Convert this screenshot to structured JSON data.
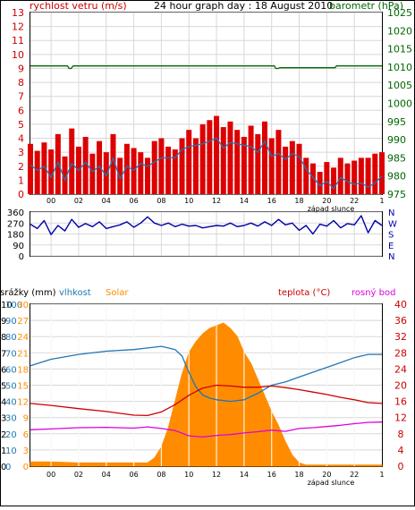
{
  "colors": {
    "wind": "#dd0000",
    "wind_avg": "#1f77b4",
    "pressure": "#006600",
    "direction": "#0000aa",
    "rain": "#1f77b4",
    "humidity": "#1f77b4",
    "solar": "#ff8c00",
    "temperature": "#cc0000",
    "dewpoint": "#dd00dd",
    "frame": "#000000"
  },
  "chart_data": [
    {
      "type": "line",
      "title": "24 hour graph day : 18 August 2010",
      "ylabel_left": "rychlost vetru (m/s)",
      "ylabel_right": "barometr (hPa)",
      "ylim_left": [
        0,
        13
      ],
      "ylim_right": [
        975,
        1025
      ],
      "y_ticks_left": [
        "0",
        "1",
        "2",
        "3",
        "4",
        "5",
        "6",
        "7",
        "8",
        "9",
        "10",
        "11",
        "12",
        "13"
      ],
      "y_ticks_right": [
        "975",
        "980",
        "985",
        "990",
        "995",
        "1000",
        "1005",
        "1010",
        "1015",
        "1020",
        "1025"
      ],
      "x_ticks": [
        "00",
        "02",
        "04",
        "06",
        "08",
        "10",
        "12",
        "14",
        "16",
        "18",
        "20",
        "22"
      ],
      "x_range_hours": [
        -1.5,
        24
      ],
      "sunset_label": "západ slunce",
      "sunset_hour": 20.3,
      "series": [
        {
          "name": "wind gust",
          "axis": "left",
          "hours": [
            -1.5,
            -1,
            -0.5,
            0,
            0.5,
            1,
            1.5,
            2,
            2.5,
            3,
            3.5,
            4,
            4.5,
            5,
            5.5,
            6,
            6.5,
            7,
            7.5,
            8,
            8.5,
            9,
            9.5,
            10,
            10.5,
            11,
            11.5,
            12,
            12.5,
            13,
            13.5,
            14,
            14.5,
            15,
            15.5,
            16,
            16.5,
            17,
            17.5,
            18,
            18.5,
            19,
            19.5,
            20,
            20.5,
            21,
            21.5,
            22,
            22.5,
            23,
            23.5,
            24
          ],
          "values": [
            3.6,
            3.1,
            3.7,
            3.2,
            4.3,
            2.7,
            4.7,
            3.4,
            4.1,
            2.9,
            3.8,
            3.0,
            4.3,
            2.6,
            3.6,
            3.3,
            3.0,
            2.6,
            3.8,
            4.0,
            3.4,
            3.2,
            4.0,
            4.6,
            4.0,
            5.0,
            5.3,
            5.6,
            4.8,
            5.2,
            4.6,
            4.1,
            4.9,
            4.3,
            5.2,
            4.0,
            4.6,
            3.4,
            3.8,
            3.6,
            2.6,
            2.2,
            1.6,
            2.3,
            1.9,
            2.6,
            2.2,
            2.4,
            2.6,
            2.6,
            2.9,
            3.0
          ]
        },
        {
          "name": "wind average",
          "axis": "left",
          "hours": [
            -1.5,
            -1,
            -0.5,
            0,
            0.5,
            1,
            1.5,
            2,
            2.5,
            3,
            3.5,
            4,
            4.5,
            5,
            5.5,
            6,
            6.5,
            7,
            7.5,
            8,
            8.5,
            9,
            9.5,
            10,
            10.5,
            11,
            11.5,
            12,
            12.5,
            13,
            13.5,
            14,
            14.5,
            15,
            15.5,
            16,
            16.5,
            17,
            17.5,
            18,
            18.5,
            19,
            19.5,
            20,
            20.5,
            21,
            21.5,
            22,
            22.5,
            23,
            23.5,
            24
          ],
          "values": [
            2.1,
            1.7,
            2.0,
            1.2,
            2.3,
            1.0,
            2.2,
            1.7,
            2.3,
            1.6,
            2.0,
            1.3,
            2.6,
            1.1,
            2.0,
            1.7,
            2.2,
            2.0,
            2.3,
            2.6,
            2.6,
            2.6,
            3.2,
            3.4,
            3.5,
            3.6,
            3.8,
            4.0,
            3.3,
            3.7,
            3.6,
            3.5,
            3.4,
            3.0,
            3.8,
            2.7,
            2.9,
            2.5,
            2.9,
            2.7,
            1.8,
            1.2,
            0.6,
            0.9,
            0.4,
            1.2,
            0.9,
            0.7,
            0.8,
            0.5,
            0.8,
            1.3
          ]
        },
        {
          "name": "pressure",
          "axis": "right",
          "hours": [
            -1.5,
            1.2,
            1.3,
            1.45,
            1.6,
            16.2,
            16.3,
            16.45,
            16.6,
            20.6,
            20.7,
            24
          ],
          "values": [
            1010.3,
            1010.3,
            1009.6,
            1009.6,
            1010.3,
            1010.3,
            1009.6,
            1009.6,
            1009.8,
            1009.8,
            1010.3,
            1010.3
          ]
        }
      ]
    },
    {
      "type": "line",
      "ylabel_right": [
        "N",
        "W",
        "S",
        "E",
        "N"
      ],
      "ylim": [
        0,
        360
      ],
      "y_ticks_left": [
        "0",
        "90",
        "180",
        "270",
        "360"
      ],
      "series": [
        {
          "name": "wind direction",
          "hours": [
            -1.5,
            -1,
            -0.5,
            0,
            0.5,
            1,
            1.5,
            2,
            2.5,
            3,
            3.5,
            4,
            4.5,
            5,
            5.5,
            6,
            6.5,
            7,
            7.5,
            8,
            8.5,
            9,
            9.5,
            10,
            10.5,
            11,
            11.5,
            12,
            12.5,
            13,
            13.5,
            14,
            14.5,
            15,
            15.5,
            16,
            16.5,
            17,
            17.5,
            18,
            18.5,
            19,
            19.5,
            20,
            20.5,
            21,
            21.5,
            22,
            22.5,
            23,
            23.5,
            24
          ],
          "values": [
            260,
            225,
            290,
            175,
            250,
            205,
            300,
            235,
            265,
            240,
            280,
            225,
            240,
            255,
            280,
            235,
            270,
            320,
            270,
            250,
            270,
            240,
            260,
            245,
            250,
            230,
            240,
            250,
            245,
            270,
            240,
            250,
            270,
            245,
            280,
            250,
            300,
            255,
            270,
            210,
            250,
            180,
            260,
            245,
            290,
            230,
            265,
            255,
            330,
            190,
            290,
            250
          ]
        }
      ]
    },
    {
      "type": "line",
      "ylabel_left_labels": [
        "srážky (mm)",
        "vlhkost",
        "Solar"
      ],
      "ylabel_right_labels": [
        "teplota (°C)",
        "rosný bod"
      ],
      "y_ticks_rain": [
        "0",
        "1",
        "2",
        "3",
        "4",
        "5",
        "6",
        "7",
        "8",
        "9",
        "10"
      ],
      "y_ticks_humidity": [
        "0",
        "10",
        "20",
        "30",
        "40",
        "50",
        "60",
        "70",
        "80",
        "90",
        "100"
      ],
      "y_ticks_solar": [
        "0",
        "3",
        "6",
        "9",
        "12",
        "15",
        "18",
        "21",
        "24",
        "27",
        "30"
      ],
      "y_ticks_temp": [
        "0",
        "4",
        "8",
        "12",
        "16",
        "20",
        "24",
        "28",
        "32",
        "36",
        "40"
      ],
      "ylim_humidity": [
        0,
        100
      ],
      "ylim_temp": [
        0,
        40
      ],
      "x_ticks": [
        "00",
        "02",
        "04",
        "06",
        "08",
        "10",
        "12",
        "14",
        "16",
        "18",
        "20",
        "22"
      ],
      "sunset_label": "západ slunce",
      "sunset_hour": 20.3,
      "series": [
        {
          "name": "humidity",
          "hours": [
            -1.5,
            0,
            2,
            4,
            6,
            7,
            8,
            8.5,
            9,
            9.5,
            10,
            10.5,
            11,
            11.5,
            12,
            13,
            14,
            15,
            16,
            17,
            18,
            19,
            20,
            21,
            22,
            23,
            24
          ],
          "values": [
            62,
            66,
            69,
            71,
            72,
            73,
            74,
            73,
            72,
            68,
            58,
            49,
            44,
            42,
            41,
            40,
            41,
            45,
            50,
            52,
            55,
            58,
            61,
            64,
            67,
            69,
            69
          ]
        },
        {
          "name": "solar",
          "hours": [
            -1.5,
            0,
            2,
            4,
            6,
            7,
            7.5,
            8,
            8.5,
            9,
            9.5,
            10,
            10.5,
            11,
            11.5,
            12,
            12.5,
            13,
            13.5,
            14,
            14.5,
            15,
            15.5,
            16,
            16.5,
            17,
            17.5,
            18,
            18.5,
            24
          ],
          "values": [
            0.8,
            0.8,
            0.6,
            0.6,
            0.6,
            0.6,
            1.5,
            3.5,
            7.0,
            12.0,
            17.0,
            21.0,
            23.0,
            24.5,
            25.5,
            26.0,
            26.5,
            25.5,
            24.0,
            21.0,
            19.0,
            16.0,
            13.0,
            10.0,
            7.5,
            4.5,
            2.0,
            0.6,
            0.2,
            0.2
          ]
        },
        {
          "name": "temperature",
          "hours": [
            -1.5,
            0,
            2,
            4,
            6,
            7,
            8,
            9,
            10,
            11,
            12,
            13,
            14,
            15,
            16,
            17,
            18,
            19,
            20,
            21,
            22,
            23,
            24
          ],
          "values": [
            15.5,
            15.0,
            14.2,
            13.5,
            12.6,
            12.5,
            13.4,
            15.2,
            17.5,
            19.3,
            20.0,
            19.8,
            19.5,
            19.5,
            19.8,
            19.4,
            18.9,
            18.3,
            17.7,
            17.0,
            16.4,
            15.7,
            15.5
          ]
        },
        {
          "name": "dewpoint",
          "hours": [
            -1.5,
            0,
            2,
            4,
            6,
            7,
            8,
            9,
            10,
            11,
            12,
            13,
            14,
            15,
            16,
            17,
            18,
            19,
            20,
            21,
            22,
            23,
            24
          ],
          "values": [
            9.0,
            9.2,
            9.5,
            9.6,
            9.4,
            9.7,
            9.3,
            8.8,
            7.5,
            7.2,
            7.6,
            7.8,
            8.2,
            8.5,
            8.9,
            8.6,
            9.3,
            9.5,
            9.8,
            10.1,
            10.5,
            10.8,
            10.9
          ]
        }
      ]
    }
  ]
}
